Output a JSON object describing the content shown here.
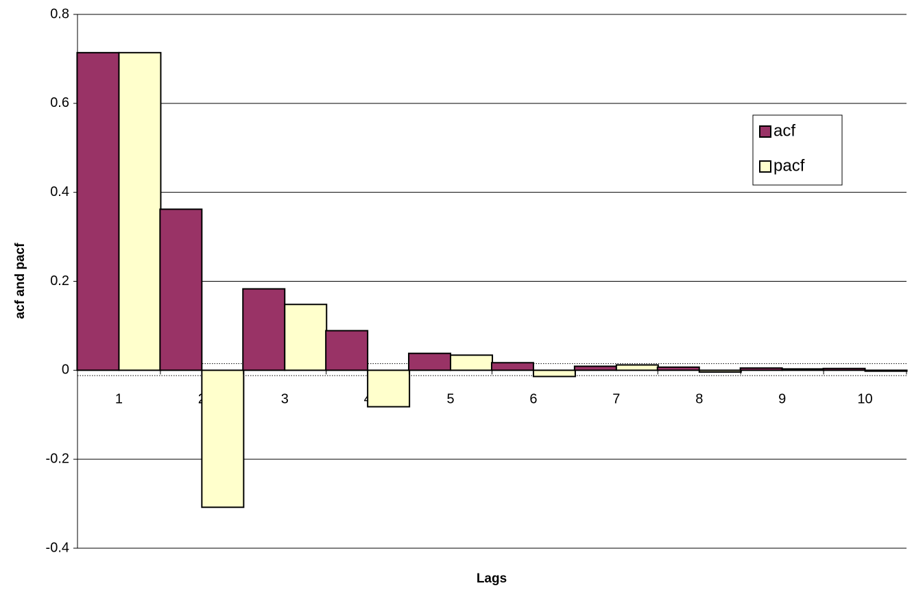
{
  "chart_data": {
    "type": "bar",
    "x_label": "Lags",
    "y_label": "acf and pacf",
    "categories": [
      "1",
      "2",
      "3",
      "4",
      "5",
      "6",
      "7",
      "8",
      "9",
      "10"
    ],
    "series": [
      {
        "name": "acf",
        "color": "#993366",
        "values": [
          0.714,
          0.362,
          0.183,
          0.089,
          0.038,
          0.017,
          0.009,
          0.007,
          0.005,
          0.004
        ]
      },
      {
        "name": "pacf",
        "color": "#ffffcc",
        "values": [
          0.714,
          -0.308,
          0.148,
          -0.082,
          0.034,
          -0.014,
          0.012,
          -0.004,
          0.003,
          -0.002
        ]
      }
    ],
    "reference_lines": [
      0.015,
      -0.012
    ],
    "ylim": [
      -0.4,
      0.8
    ],
    "yticks": [
      -0.4,
      -0.2,
      0,
      0.2,
      0.4,
      0.6,
      0.8
    ],
    "grid": true,
    "legend_position": "upper right"
  }
}
